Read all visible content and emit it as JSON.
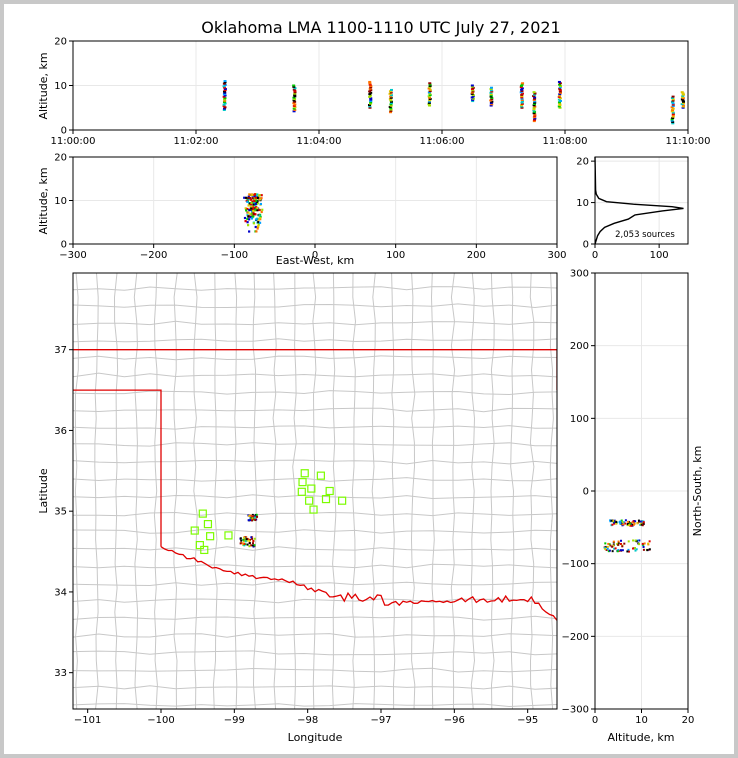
{
  "title": "Oklahoma LMA 1100-1110 UTC July 27, 2021",
  "colors": {
    "state_border": "#e00000",
    "county_lines": "#c8c8c8",
    "stations": "#7cfc00",
    "grid": "#e8e8e8",
    "source_palette": [
      "#0000c8",
      "#00a0ff",
      "#00c8c8",
      "#00c800",
      "#a0e000",
      "#e0c800",
      "#ff7000",
      "#e00000",
      "#900000",
      "#000000"
    ]
  },
  "chart_data": [
    {
      "id": "time_height",
      "type": "scatter",
      "xlabel": "",
      "ylabel": "Altitude, km",
      "xlim": [
        "11:00:00",
        "11:10:00"
      ],
      "ylim": [
        0,
        20
      ],
      "xticks": [
        "11:00:00",
        "11:02:00",
        "11:04:00",
        "11:06:00",
        "11:08:00",
        "11:10:00"
      ],
      "yticks": [
        0,
        10,
        20
      ],
      "grid": true,
      "columns": [
        {
          "t": "11:02:28",
          "zmin": 4.5,
          "zmax": 11
        },
        {
          "t": "11:03:36",
          "zmin": 4.2,
          "zmax": 10
        },
        {
          "t": "11:04:50",
          "zmin": 5,
          "zmax": 10.8
        },
        {
          "t": "11:05:10",
          "zmin": 4,
          "zmax": 9
        },
        {
          "t": "11:05:48",
          "zmin": 5.5,
          "zmax": 10.5
        },
        {
          "t": "11:06:30",
          "zmin": 6.5,
          "zmax": 10
        },
        {
          "t": "11:06:48",
          "zmin": 5.5,
          "zmax": 9.5
        },
        {
          "t": "11:07:18",
          "zmin": 5,
          "zmax": 10.5
        },
        {
          "t": "11:07:30",
          "zmin": 2,
          "zmax": 8.5
        },
        {
          "t": "11:07:55",
          "zmin": 5,
          "zmax": 10.8
        },
        {
          "t": "11:09:45",
          "zmin": 1.5,
          "zmax": 7.5
        },
        {
          "t": "11:09:55",
          "zmin": 5,
          "zmax": 8.5
        }
      ]
    },
    {
      "id": "ew_height",
      "type": "scatter",
      "xlabel": "East-West, km",
      "ylabel": "Altitude, km",
      "xlim": [
        -300,
        300
      ],
      "ylim": [
        0,
        20
      ],
      "xticks": [
        -300,
        -200,
        -100,
        0,
        100,
        200,
        300
      ],
      "yticks": [
        0,
        10,
        20
      ],
      "grid": true,
      "cluster": {
        "xmin": -89,
        "xmax": -64,
        "zmin": 2,
        "zmax": 11.5
      }
    },
    {
      "id": "altitude_histogram",
      "type": "line",
      "xlabel": "",
      "ylabel": "",
      "xlim": [
        0,
        145
      ],
      "ylim": [
        0,
        21
      ],
      "xticks": [
        0,
        100
      ],
      "yticks": [
        0,
        10,
        20
      ],
      "annotation": "2,053 sources",
      "profile": [
        {
          "z": 0,
          "n": 0
        },
        {
          "z": 2,
          "n": 4
        },
        {
          "z": 3,
          "n": 8
        },
        {
          "z": 4,
          "n": 15
        },
        {
          "z": 5,
          "n": 30
        },
        {
          "z": 6,
          "n": 52
        },
        {
          "z": 7,
          "n": 62
        },
        {
          "z": 8,
          "n": 105
        },
        {
          "z": 8.6,
          "n": 138
        },
        {
          "z": 9,
          "n": 120
        },
        {
          "z": 9.6,
          "n": 60
        },
        {
          "z": 10.2,
          "n": 18
        },
        {
          "z": 11,
          "n": 6
        },
        {
          "z": 12,
          "n": 2
        },
        {
          "z": 13,
          "n": 1
        },
        {
          "z": 21,
          "n": 0
        }
      ]
    },
    {
      "id": "plan_view",
      "type": "map",
      "xlabel": "Longitude",
      "ylabel": "Latitude",
      "xlim": [
        -101.2,
        -94.6
      ],
      "ylim": [
        32.55,
        37.95
      ],
      "xticks": [
        -101,
        -100,
        -99,
        -98,
        -97,
        -96,
        -95
      ],
      "yticks": [
        33,
        34,
        35,
        36,
        37
      ],
      "clusters": [
        {
          "lon": -98.75,
          "lat": 34.92,
          "spread": 0.06
        },
        {
          "lon": -98.82,
          "lat": 34.62,
          "spread": 0.1
        }
      ],
      "stations": [
        [
          -98.04,
          35.47
        ],
        [
          -97.82,
          35.44
        ],
        [
          -98.07,
          35.36
        ],
        [
          -97.95,
          35.28
        ],
        [
          -98.08,
          35.24
        ],
        [
          -97.7,
          35.25
        ],
        [
          -97.75,
          35.15
        ],
        [
          -97.53,
          35.13
        ],
        [
          -97.98,
          35.13
        ],
        [
          -97.92,
          35.02
        ],
        [
          -99.43,
          34.97
        ],
        [
          -99.36,
          34.84
        ],
        [
          -99.54,
          34.76
        ],
        [
          -99.33,
          34.69
        ],
        [
          -99.08,
          34.7
        ],
        [
          -99.47,
          34.58
        ],
        [
          -99.41,
          34.52
        ]
      ]
    },
    {
      "id": "ns_height",
      "type": "scatter",
      "xlabel": "Altitude, km",
      "ylabel": "North-South, km",
      "xlim": [
        0,
        20
      ],
      "ylim": [
        -300,
        300
      ],
      "xticks": [
        0,
        10,
        20
      ],
      "yticks": [
        -300,
        -200,
        -100,
        0,
        100,
        200,
        300
      ],
      "clusters": [
        {
          "ns": -44,
          "zmin": 3,
          "zmax": 10.5
        },
        {
          "ns": -76,
          "zmin": 2,
          "zmax": 12
        }
      ]
    }
  ]
}
